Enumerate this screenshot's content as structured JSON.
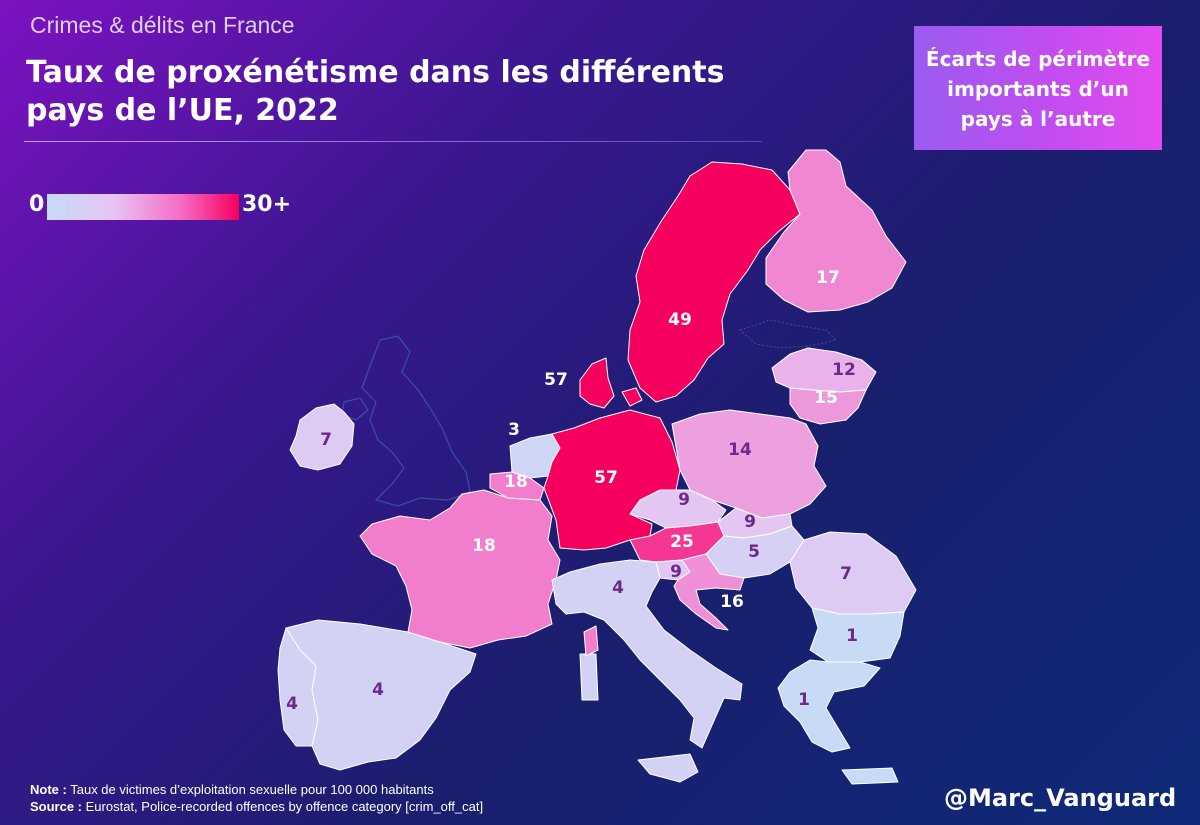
{
  "header": {
    "subtitle": "Crimes & délits en France",
    "title": "Taux de proxénétisme dans les différents pays de l’UE, 2022"
  },
  "callout": {
    "text": "Écarts de périmètre importants d’un pays à l’autre"
  },
  "legend": {
    "min_label": "0",
    "max_label": "30+",
    "colors": [
      "#c5dcf5",
      "#e7c4f3",
      "#f56bc4",
      "#f5005f"
    ]
  },
  "colors": {
    "background_top": "#7d12c2",
    "background_bottom": "#0e2a78",
    "label_dark": "#6a2a8c",
    "label_light": "#ffffff",
    "outline": "#3b4ea0"
  },
  "chart_data": {
    "type": "choropleth",
    "title": "Taux de proxénétisme dans les différents pays de l’UE, 2022",
    "metric": "Taux de victimes d’exploitation sexuelle pour 100 000 habitants",
    "scale": [
      0,
      30
    ],
    "countries": [
      {
        "name": "Irlande",
        "value": 7
      },
      {
        "name": "Espagne",
        "value": 4
      },
      {
        "name": "Portugal",
        "value": 4
      },
      {
        "name": "France",
        "value": 18
      },
      {
        "name": "Belgique",
        "value": 18
      },
      {
        "name": "Pays-Bas",
        "value": 3
      },
      {
        "name": "Allemagne",
        "value": 57
      },
      {
        "name": "Danemark",
        "value": 57
      },
      {
        "name": "Suède",
        "value": 49
      },
      {
        "name": "Finlande",
        "value": 17
      },
      {
        "name": "Lettonie",
        "value": 12
      },
      {
        "name": "Lituanie",
        "value": 15
      },
      {
        "name": "Pologne",
        "value": 14
      },
      {
        "name": "Tchéquie",
        "value": 9
      },
      {
        "name": "Slovaquie",
        "value": 9
      },
      {
        "name": "Autriche",
        "value": 25
      },
      {
        "name": "Hongrie",
        "value": 5
      },
      {
        "name": "Roumanie",
        "value": 7
      },
      {
        "name": "Slovénie",
        "value": 9
      },
      {
        "name": "Croatie",
        "value": 16
      },
      {
        "name": "Italie",
        "value": 4
      },
      {
        "name": "Bulgarie",
        "value": 1
      },
      {
        "name": "Grèce",
        "value": 1
      }
    ]
  },
  "footer": {
    "note_label": "Note :",
    "note_text": "Taux de victimes d’exploitation sexuelle pour 100 000 habitants",
    "source_label": "Source :",
    "source_text": "Eurostat, Police-recorded offences by offence category [crim_off_cat]",
    "handle": "@Marc_Vanguard"
  }
}
